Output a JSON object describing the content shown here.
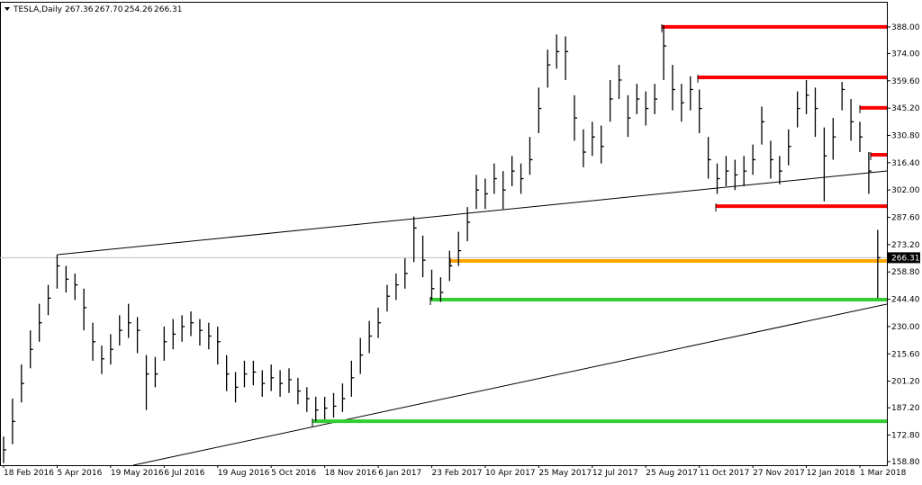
{
  "chart_data": {
    "type": "ohlc",
    "title": "TESLA,Daily",
    "header_values": [
      "267.36",
      "267.70",
      "254.26",
      "266.31"
    ],
    "color": "#000000",
    "categories": [
      "18 Feb 2016",
      null,
      null,
      null,
      null,
      null,
      "5 Apr 2016",
      null,
      null,
      null,
      null,
      null,
      "19 May 2016",
      null,
      null,
      null,
      null,
      null,
      "6 Jul 2016",
      null,
      null,
      null,
      null,
      null,
      "19 Aug 2016",
      null,
      null,
      null,
      null,
      null,
      "5 Oct 2016",
      null,
      null,
      null,
      null,
      null,
      "18 Nov 2016",
      null,
      null,
      null,
      null,
      null,
      "6 Jan 2017",
      null,
      null,
      null,
      null,
      null,
      "23 Feb 2017",
      null,
      null,
      null,
      null,
      null,
      "10 Apr 2017",
      null,
      null,
      null,
      null,
      null,
      "25 May 2017",
      null,
      null,
      null,
      null,
      null,
      "12 Jul 2017",
      null,
      null,
      null,
      null,
      null,
      "25 Aug 2017",
      null,
      null,
      null,
      null,
      null,
      "11 Oct 2017",
      null,
      null,
      null,
      null,
      null,
      "27 Nov 2017",
      null,
      null,
      null,
      null,
      null,
      "12 Jan 2018",
      null,
      null,
      null,
      null,
      null,
      "1 Mar 2018",
      null,
      null
    ],
    "high": [
      172,
      192,
      210,
      228,
      242,
      252,
      268,
      262,
      258,
      250,
      232,
      220,
      226,
      236,
      242,
      235,
      215,
      214,
      230,
      234,
      236,
      238,
      234,
      232,
      230,
      215,
      206,
      212,
      212,
      207,
      210,
      207,
      208,
      203,
      198,
      193,
      193,
      195,
      200,
      212,
      224,
      233,
      240,
      252,
      258,
      266,
      288,
      278,
      260,
      256,
      270,
      280,
      293,
      310,
      308,
      316,
      312,
      320,
      316,
      330,
      356,
      376,
      384,
      383,
      352,
      334,
      338,
      336,
      360,
      368,
      352,
      358,
      354,
      358,
      389,
      368,
      358,
      362,
      355,
      330,
      316,
      320,
      318,
      320,
      326,
      346,
      328,
      320,
      334,
      354,
      360,
      356,
      335,
      340,
      359,
      350,
      338,
      322,
      281
    ],
    "low": [
      158,
      168,
      190,
      208,
      222,
      236,
      250,
      248,
      244,
      228,
      212,
      205,
      210,
      220,
      224,
      216,
      186,
      198,
      212,
      218,
      222,
      225,
      220,
      218,
      210,
      196,
      190,
      198,
      199,
      193,
      196,
      193,
      195,
      189,
      185,
      180,
      181,
      182,
      185,
      193,
      205,
      216,
      224,
      238,
      244,
      250,
      264,
      256,
      244,
      243,
      254,
      262,
      275,
      292,
      292,
      300,
      292,
      304,
      300,
      310,
      332,
      356,
      366,
      360,
      328,
      314,
      320,
      316,
      338,
      350,
      330,
      342,
      336,
      342,
      360,
      344,
      338,
      344,
      332,
      308,
      300,
      304,
      302,
      304,
      310,
      326,
      308,
      305,
      315,
      335,
      342,
      330,
      296,
      318,
      344,
      328,
      322,
      300,
      245
    ],
    "close": [
      165,
      180,
      200,
      218,
      232,
      245,
      262,
      255,
      252,
      240,
      222,
      213,
      218,
      228,
      232,
      228,
      205,
      205,
      222,
      226,
      230,
      232,
      228,
      225,
      222,
      205,
      198,
      205,
      206,
      200,
      203,
      200,
      202,
      196,
      192,
      186,
      187,
      188,
      192,
      203,
      215,
      225,
      232,
      246,
      252,
      258,
      282,
      265,
      250,
      248,
      262,
      270,
      285,
      302,
      300,
      308,
      302,
      312,
      308,
      318,
      345,
      368,
      375,
      375,
      340,
      322,
      330,
      325,
      350,
      360,
      340,
      350,
      345,
      350,
      378,
      355,
      348,
      355,
      345,
      318,
      308,
      312,
      310,
      312,
      318,
      338,
      318,
      312,
      325,
      345,
      352,
      345,
      320,
      330,
      355,
      338,
      330,
      312,
      266.31
    ],
    "ylim": [
      156.9,
      402.2
    ],
    "yticks": [
      {
        "value": 388,
        "label": "388.00"
      },
      {
        "value": 374,
        "label": "374.00"
      },
      {
        "value": 359.6,
        "label": "359.60"
      },
      {
        "value": 345.2,
        "label": "345.20"
      },
      {
        "value": 330.8,
        "label": "330.80"
      },
      {
        "value": 316.4,
        "label": "316.40"
      },
      {
        "value": 302,
        "label": "302.00"
      },
      {
        "value": 287.6,
        "label": "287.60"
      },
      {
        "value": 273.2,
        "label": "273.20"
      },
      {
        "value": 258.8,
        "label": "258.80"
      },
      {
        "value": 244.4,
        "label": "244.40"
      },
      {
        "value": 230,
        "label": "230.00"
      },
      {
        "value": 215.6,
        "label": "215.60"
      },
      {
        "value": 201.2,
        "label": "201.20"
      },
      {
        "value": 187.2,
        "label": "187.20"
      },
      {
        "value": 172.8,
        "label": "172.80"
      },
      {
        "value": 158.8,
        "label": "158.80"
      }
    ],
    "last_price": {
      "value": 266.31,
      "label": "266.31"
    },
    "levels": [
      {
        "value": 388,
        "color": "#ff0000"
      },
      {
        "value": 361.4,
        "color": "#ff0000"
      },
      {
        "value": 345.3,
        "color": "#ff0000"
      },
      {
        "value": 320.6,
        "color": "#ff0000"
      },
      {
        "value": 293.5,
        "color": "#ff0000"
      },
      {
        "value": 264.6,
        "color": "#ffa500"
      },
      {
        "value": 244.2,
        "color": "#32cd32"
      },
      {
        "value": 180.1,
        "color": "#32cd32"
      }
    ],
    "grid": false
  }
}
